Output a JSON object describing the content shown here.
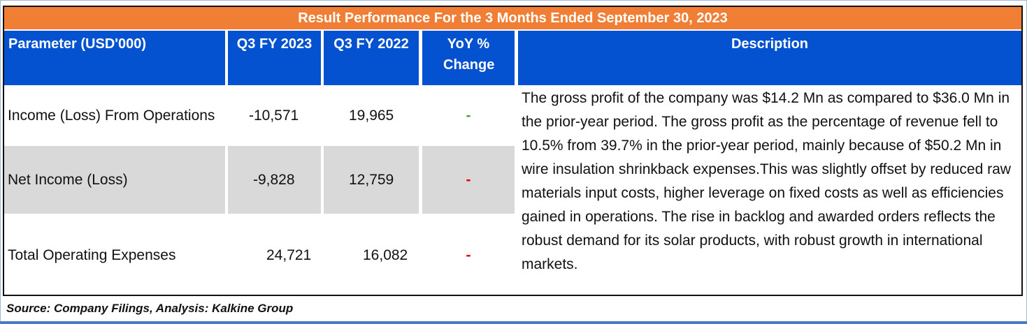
{
  "title": "Result Performance For the 3 Months Ended September 30, 2023",
  "headers": [
    "Parameter  (USD'000)",
    "Q3 FY 2023",
    "Q3 FY 2022",
    "YoY % Change",
    "Description"
  ],
  "rows": [
    {
      "parameter": "Income (Loss) From Operations",
      "q3_2023": "-10,571",
      "q3_2022": "19,965",
      "yoy": "-"
    },
    {
      "parameter": "Net Income (Loss)",
      "q3_2023": "-9,828",
      "q3_2022": "12,759",
      "yoy": "-"
    },
    {
      "parameter": "Total Operating Expenses",
      "q3_2023": "24,721",
      "q3_2022": "16,082",
      "yoy": "-"
    }
  ],
  "description": "The gross profit of the company was $14.2 Mn as compared to $36.0 Mn in the prior-year period. The gross profit as the percentage of revenue fell to 10.5% from 39.7% in the prior-year period, mainly because of $50.2 Mn in wire insulation shrinkback expenses.This was slightly offset by reduced raw materials input costs, higher leverage on fixed costs as well as efficiencies gained in operations. The rise in backlog and awarded orders reflects the robust demand for its solar products, with robust growth in international markets.",
  "source": "Source: Company Filings, Analysis: Kalkine Group",
  "colors": {
    "title_bg": "#f07f35",
    "header_bg": "#0552d0",
    "yoy_green": "#5a9e3a",
    "yoy_red": "#e00000"
  }
}
